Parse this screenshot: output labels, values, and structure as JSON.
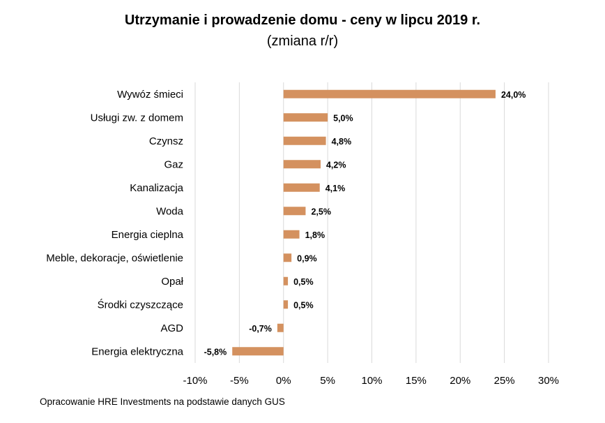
{
  "chart_data": {
    "type": "bar",
    "orientation": "horizontal",
    "title": "Utrzymanie i prowadzenie domu - ceny w lipcu 2019 r.",
    "subtitle": "(zmiana r/r)",
    "categories": [
      "Wywóz śmieci",
      "Usługi zw. z domem",
      "Czynsz",
      "Gaz",
      "Kanalizacja",
      "Woda",
      "Energia cieplna",
      "Meble, dekoracje, oświetlenie",
      "Opał",
      "Środki czyszczące",
      "AGD",
      "Energia elektryczna"
    ],
    "values": [
      24.0,
      5.0,
      4.8,
      4.2,
      4.1,
      2.5,
      1.8,
      0.9,
      0.5,
      0.5,
      -0.7,
      -5.8
    ],
    "data_labels": [
      "24,0%",
      "5,0%",
      "4,8%",
      "4,2%",
      "4,1%",
      "2,5%",
      "1,8%",
      "0,9%",
      "0,5%",
      "0,5%",
      "-0,7%",
      "-5,8%"
    ],
    "xlim": [
      -10,
      30
    ],
    "xticks": [
      -10,
      -5,
      0,
      5,
      10,
      15,
      20,
      25,
      30
    ],
    "xtick_labels": [
      "-10%",
      "-5%",
      "0%",
      "5%",
      "10%",
      "15%",
      "20%",
      "25%",
      "30%"
    ],
    "grid": "vertical",
    "legend": "none",
    "bar_color": "#D4915F",
    "grid_color": "#D9D9D9"
  },
  "source_note": "Opracowanie HRE Investments na podstawie danych GUS"
}
